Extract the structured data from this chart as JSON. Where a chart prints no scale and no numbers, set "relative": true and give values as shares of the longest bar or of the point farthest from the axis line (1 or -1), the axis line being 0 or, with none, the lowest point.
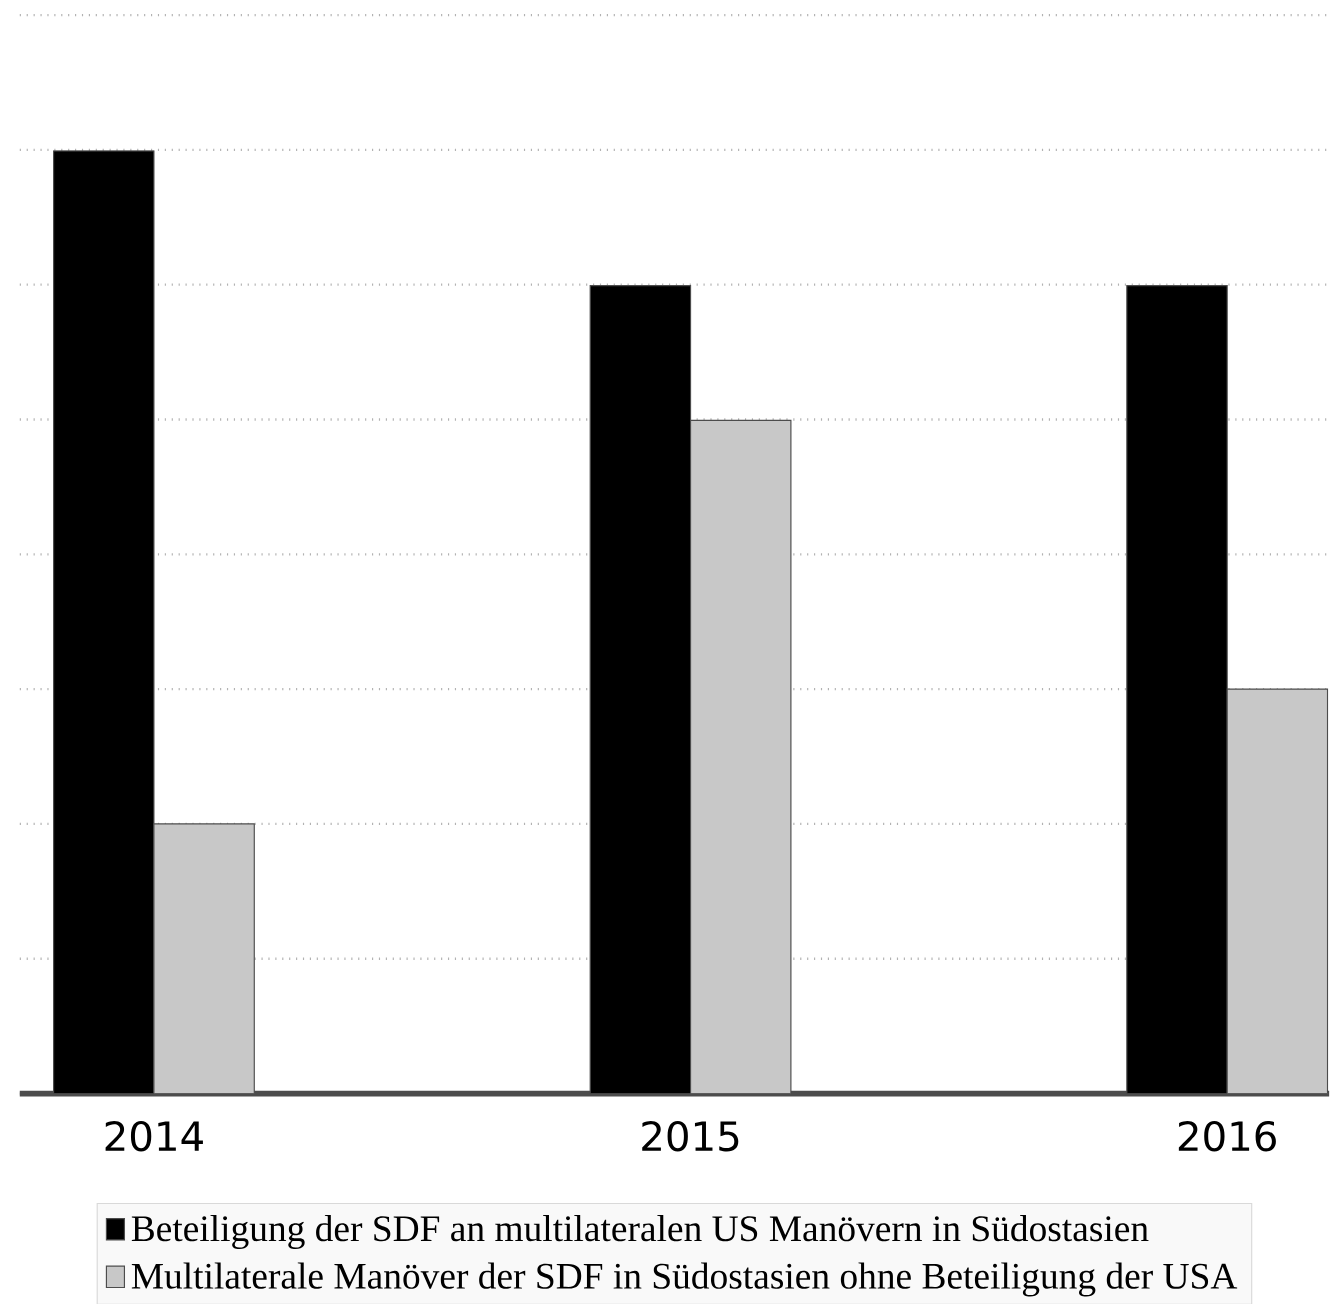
{
  "chart_data": {
    "type": "bar",
    "relative": true,
    "categories": [
      "2014",
      "2015",
      "2016"
    ],
    "series": [
      {
        "name": "Beteiligung der SDF an multilateralen US Manövern in Südostasien",
        "color": "#000000",
        "values": [
          1,
          0.857,
          0.857
        ]
      },
      {
        "name": "Multilaterale Manöver der SDF in Südostasien ohne Beteiligung der USA",
        "color": "#c8c8c8",
        "values": [
          0.286,
          0.714,
          0.429
        ]
      }
    ],
    "grid": "y",
    "legend": "bottom"
  }
}
